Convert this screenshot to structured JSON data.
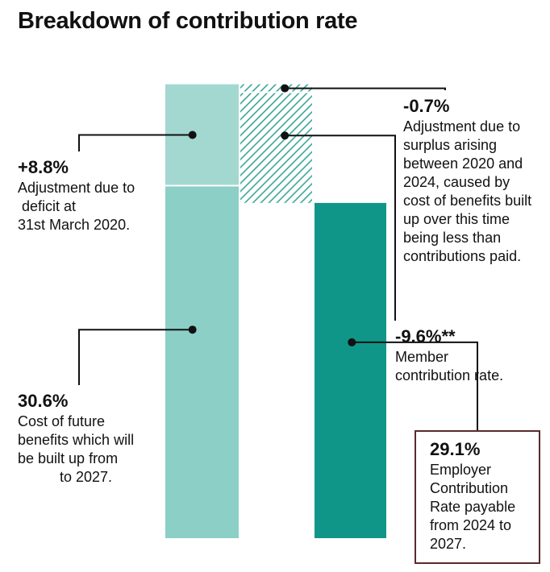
{
  "title": "Breakdown of contribution rate",
  "chart_data": {
    "type": "waterfall",
    "title": "Breakdown of contribution rate",
    "unit": "%",
    "steps": [
      {
        "id": "future",
        "value": 30.6,
        "label": "30.6%",
        "description": [
          "Cost of future",
          "benefits which will",
          "be built up from",
          "to 2027."
        ],
        "kind": "increase"
      },
      {
        "id": "deficit",
        "value": 8.8,
        "label": "+8.8%",
        "description": [
          "Adjustment due to",
          " deficit at",
          "31st March 2020."
        ],
        "kind": "increase"
      },
      {
        "id": "surplus",
        "value": -0.7,
        "label": "-0.7%",
        "description": [
          "Adjustment due to",
          "surplus arising",
          "between 2020 and",
          "2024, caused by",
          "cost of benefits built",
          "up over this time",
          "being less than",
          "contributions paid."
        ],
        "kind": "decrease"
      },
      {
        "id": "member",
        "value": -9.6,
        "label": "-9.6%**",
        "description": [
          "Member",
          "contribution rate."
        ],
        "kind": "decrease"
      },
      {
        "id": "employer",
        "value": 29.1,
        "label": "29.1%",
        "description": [
          "Employer",
          "Contribution",
          "Rate payable",
          "from 2024 to",
          "2027."
        ],
        "kind": "total"
      }
    ],
    "colors": {
      "base": "#8ccfc6",
      "adjustment_up": "#a3d8d1",
      "adjustment_down_hatch": "#3aa698",
      "total": "#0f9688",
      "separator": "#ffffff",
      "leader": "#111111",
      "box_border": "#5a2a2a"
    }
  }
}
